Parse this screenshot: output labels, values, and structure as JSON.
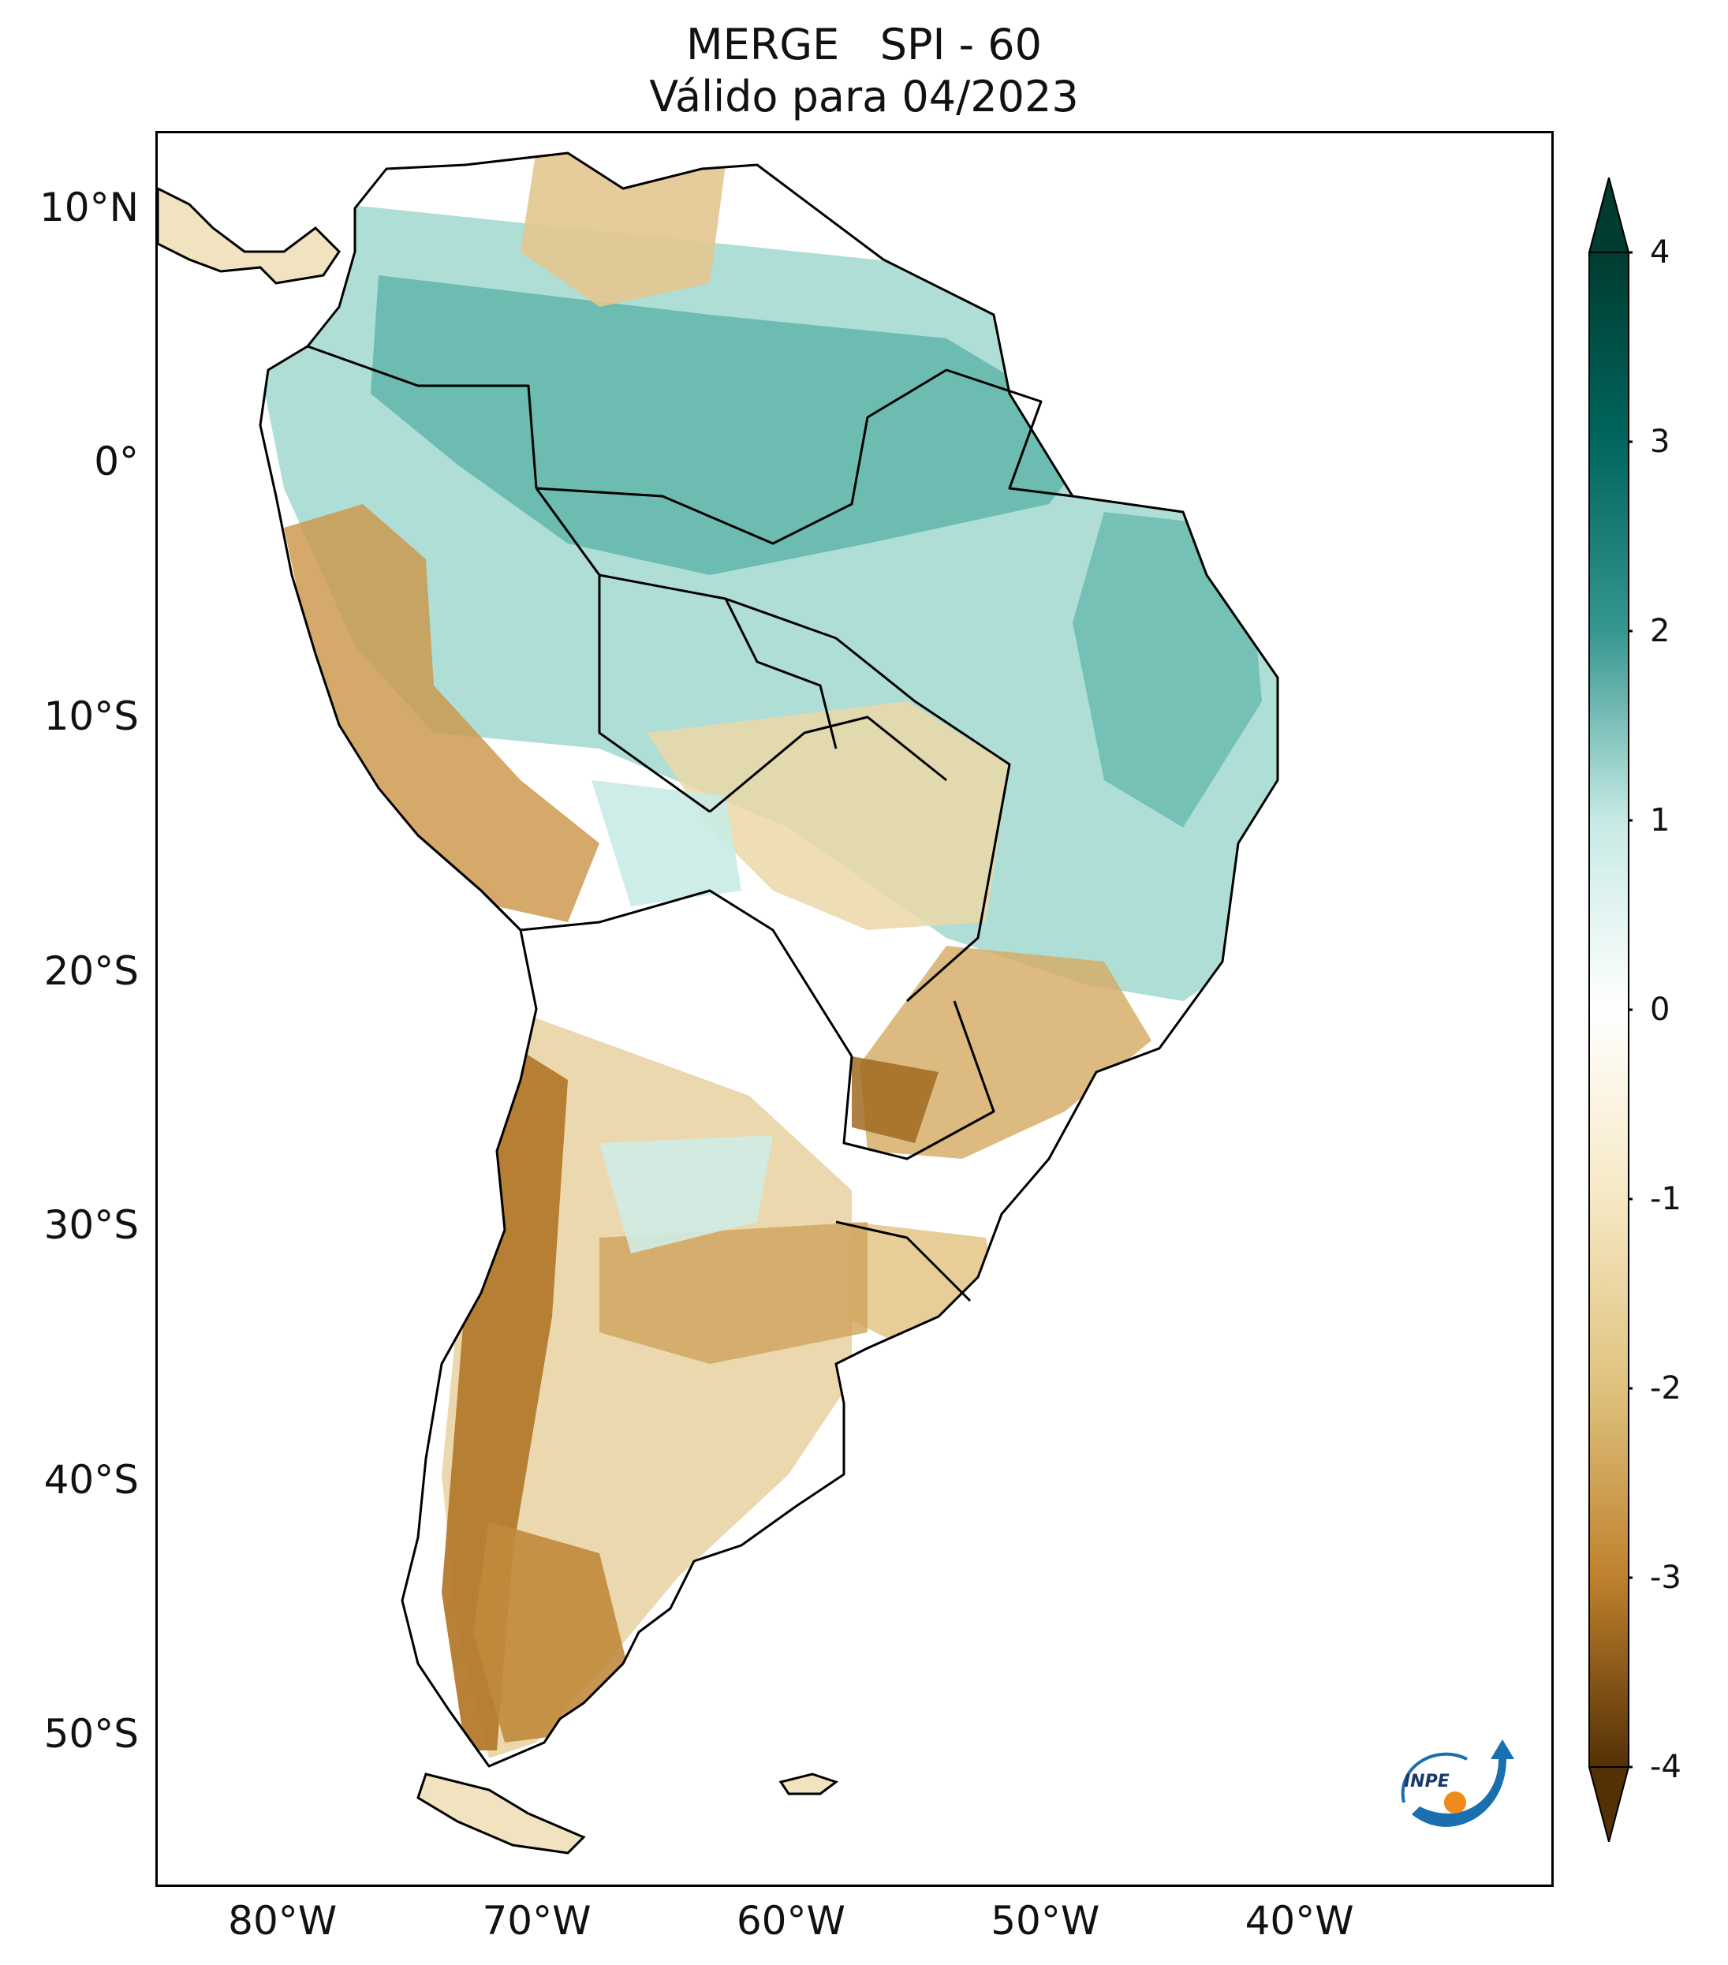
{
  "title": {
    "line1": "MERGE   SPI - 60",
    "line2": "Válido para 04/2023"
  },
  "map": {
    "lat_ticks": [
      {
        "label": "10°N",
        "value": 10
      },
      {
        "label": "0°",
        "value": 0
      },
      {
        "label": "10°S",
        "value": -10
      },
      {
        "label": "20°S",
        "value": -20
      },
      {
        "label": "30°S",
        "value": -30
      },
      {
        "label": "40°S",
        "value": -40
      },
      {
        "label": "50°S",
        "value": -50
      }
    ],
    "lon_ticks": [
      {
        "label": "80°W",
        "value": -80
      },
      {
        "label": "70°W",
        "value": -70
      },
      {
        "label": "60°W",
        "value": -60
      },
      {
        "label": "50°W",
        "value": -50
      },
      {
        "label": "40°W",
        "value": -40
      }
    ],
    "lon_range": [
      -85,
      -30
    ],
    "lat_range": [
      -56,
      13
    ]
  },
  "colorbar": {
    "ticks": [
      "4",
      "3",
      "2",
      "1",
      "0",
      "-1",
      "-2",
      "-3",
      "-4"
    ],
    "min": -4,
    "max": 4,
    "colors": {
      "c_p4": "#003c30",
      "c_p3": "#01665e",
      "c_p2": "#35978f",
      "c_p1": "#c7eae5",
      "c_0": "#ffffff",
      "c_m1": "#f6e8c3",
      "c_m2": "#dfc27d",
      "c_m3": "#bf812d",
      "c_m4": "#543005"
    }
  },
  "logo": {
    "text": "INPE",
    "arc_color": "#1a6fb0",
    "dot_color": "#f08a1c"
  }
}
